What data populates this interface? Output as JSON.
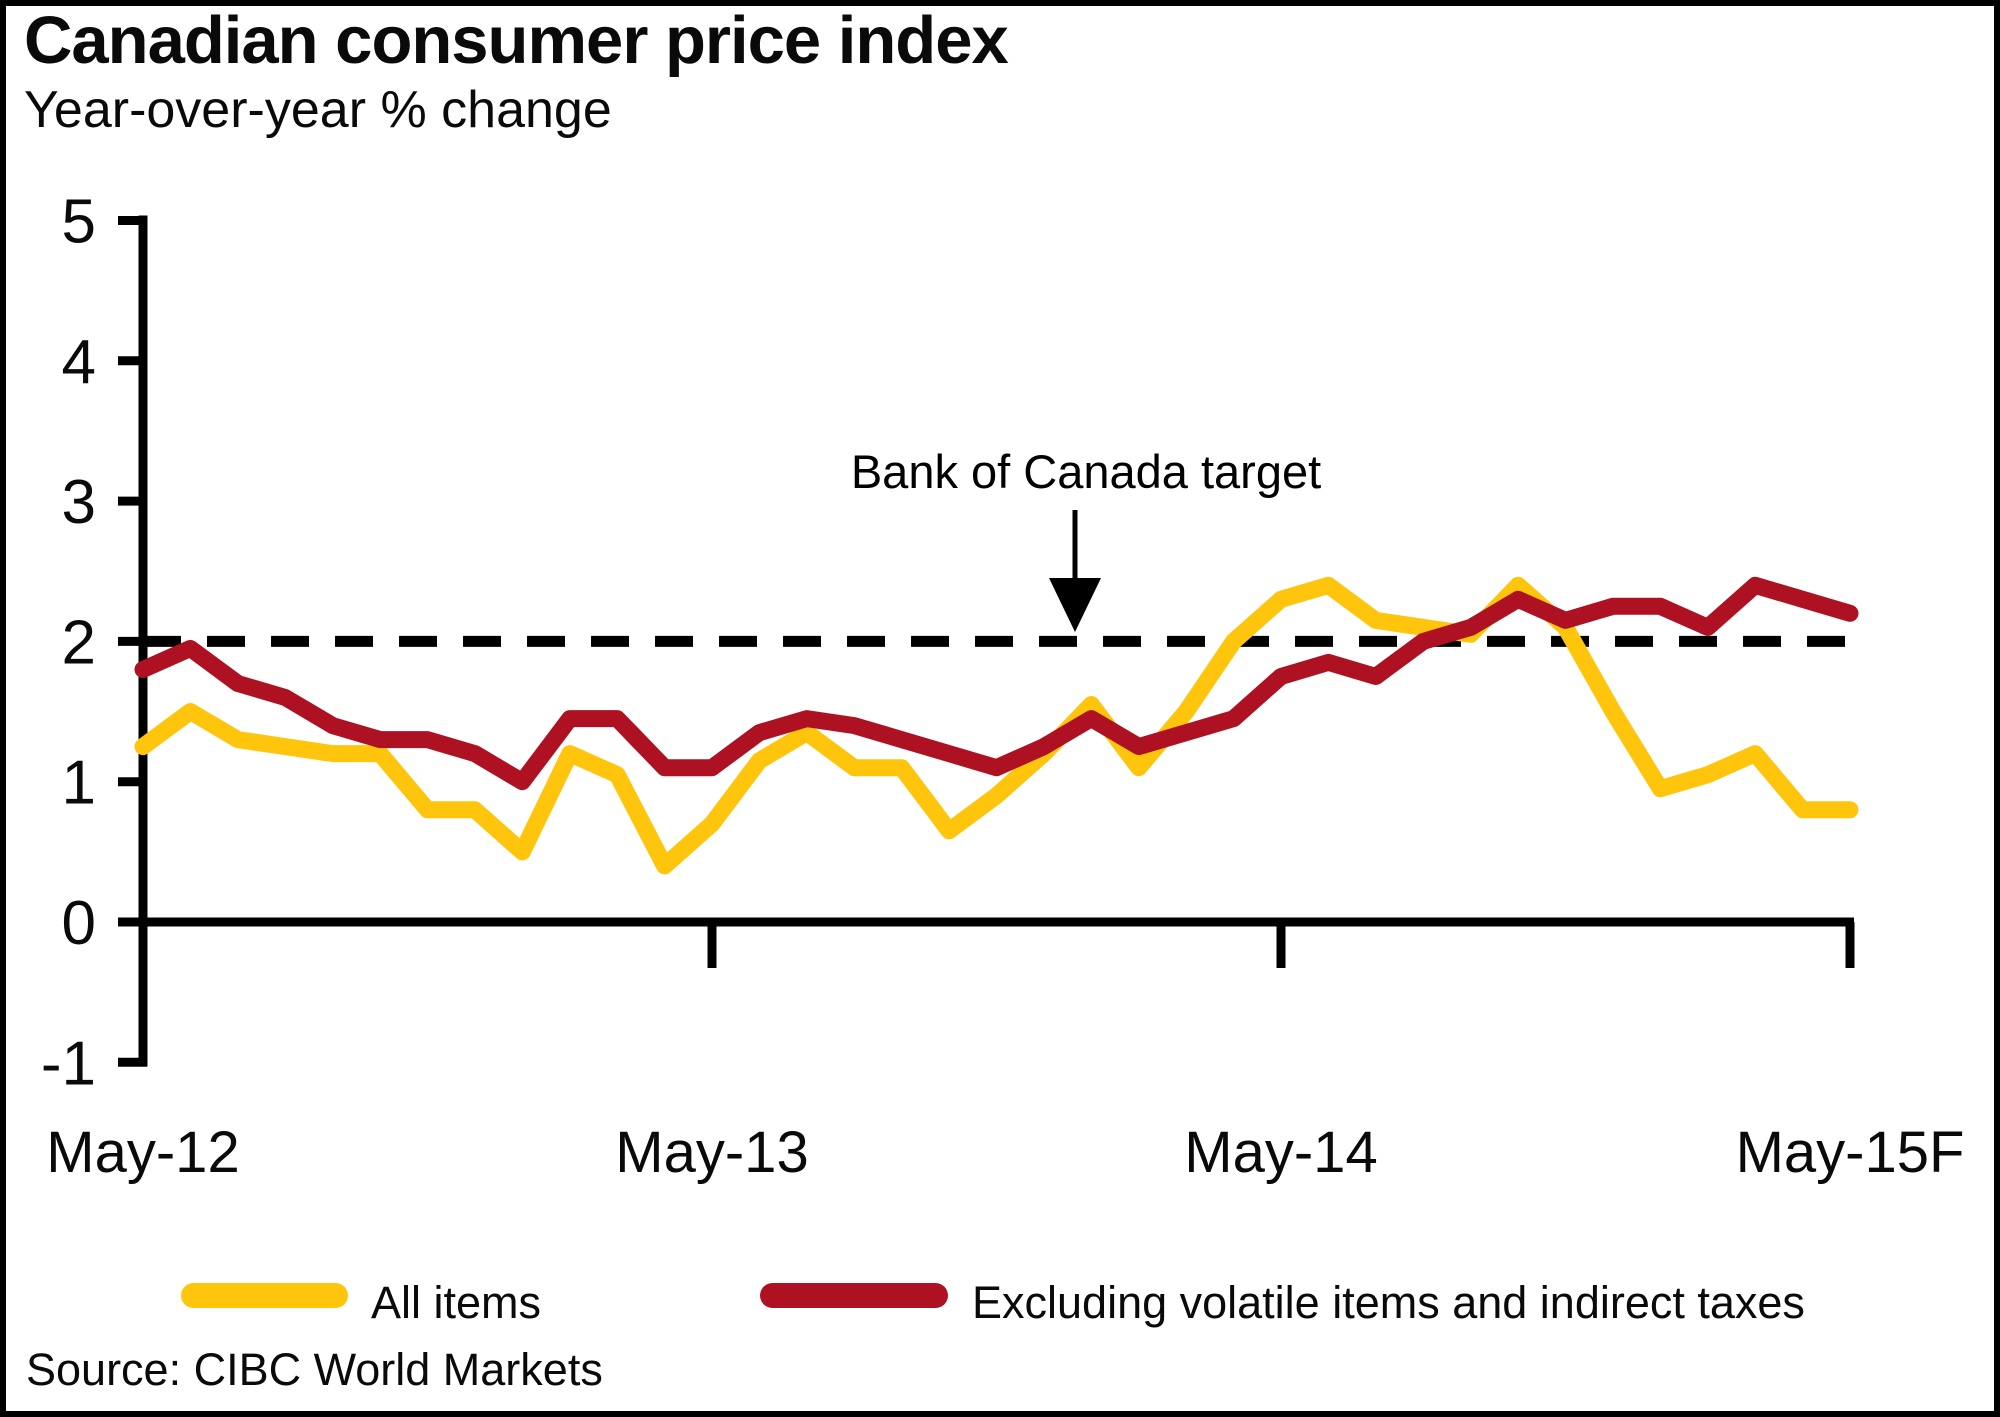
{
  "header": {
    "title": "Canadian consumer price index",
    "subtitle": "Year-over-year % change"
  },
  "annotation": {
    "label": "Bank of Canada target"
  },
  "legend": [
    {
      "label": "All items",
      "color": "#FFC50C"
    },
    {
      "label": "Excluding volatile items and indirect taxes",
      "color": "#AE1222"
    }
  ],
  "source": "Source: CIBC World Markets",
  "colors": {
    "axis": "#000000",
    "target_line": "#000000",
    "all_items": "#FFC50C",
    "ex_volatile": "#AE1222"
  },
  "chart_data": {
    "type": "line",
    "title": "Canadian consumer price index",
    "ylabel": "Year-over-year % change",
    "x": [
      "May-12",
      "Jun-12",
      "Jul-12",
      "Aug-12",
      "Sep-12",
      "Oct-12",
      "Nov-12",
      "Dec-12",
      "Jan-13",
      "Feb-13",
      "Mar-13",
      "Apr-13",
      "May-13",
      "Jun-13",
      "Jul-13",
      "Aug-13",
      "Sep-13",
      "Oct-13",
      "Nov-13",
      "Dec-13",
      "Jan-14",
      "Feb-14",
      "Mar-14",
      "Apr-14",
      "May-14",
      "Jun-14",
      "Jul-14",
      "Aug-14",
      "Sep-14",
      "Oct-14",
      "Nov-14",
      "Dec-14",
      "Jan-15",
      "Feb-15",
      "Mar-15",
      "Apr-15",
      "May-15F"
    ],
    "x_tick_labels": [
      "May-12",
      "May-13",
      "May-14",
      "May-15F"
    ],
    "x_tick_indices": [
      0,
      12,
      24,
      36
    ],
    "y_ticks": [
      5,
      4,
      3,
      2,
      1,
      0,
      -1
    ],
    "ylim": [
      -1,
      5
    ],
    "grid": false,
    "legend_position": "bottom",
    "target_value": 2,
    "series": [
      {
        "name": "All items",
        "color": "#FFC50C",
        "values": [
          1.25,
          1.5,
          1.3,
          1.25,
          1.2,
          1.2,
          0.8,
          0.8,
          0.5,
          1.2,
          1.05,
          0.4,
          0.7,
          1.15,
          1.35,
          1.1,
          1.1,
          0.65,
          0.9,
          1.2,
          1.55,
          1.1,
          1.5,
          2.0,
          2.3,
          2.4,
          2.15,
          2.1,
          2.05,
          2.4,
          2.1,
          1.5,
          0.95,
          1.05,
          1.2,
          0.8,
          0.8
        ]
      },
      {
        "name": "Excluding volatile items and indirect taxes",
        "color": "#AE1222",
        "values": [
          1.8,
          1.95,
          1.7,
          1.6,
          1.4,
          1.3,
          1.3,
          1.2,
          1.0,
          1.45,
          1.45,
          1.1,
          1.1,
          1.35,
          1.45,
          1.4,
          1.3,
          1.2,
          1.1,
          1.25,
          1.45,
          1.25,
          1.35,
          1.45,
          1.75,
          1.85,
          1.75,
          2.0,
          2.1,
          2.3,
          2.15,
          2.25,
          2.25,
          2.1,
          2.4,
          2.3,
          2.2
        ]
      }
    ]
  }
}
